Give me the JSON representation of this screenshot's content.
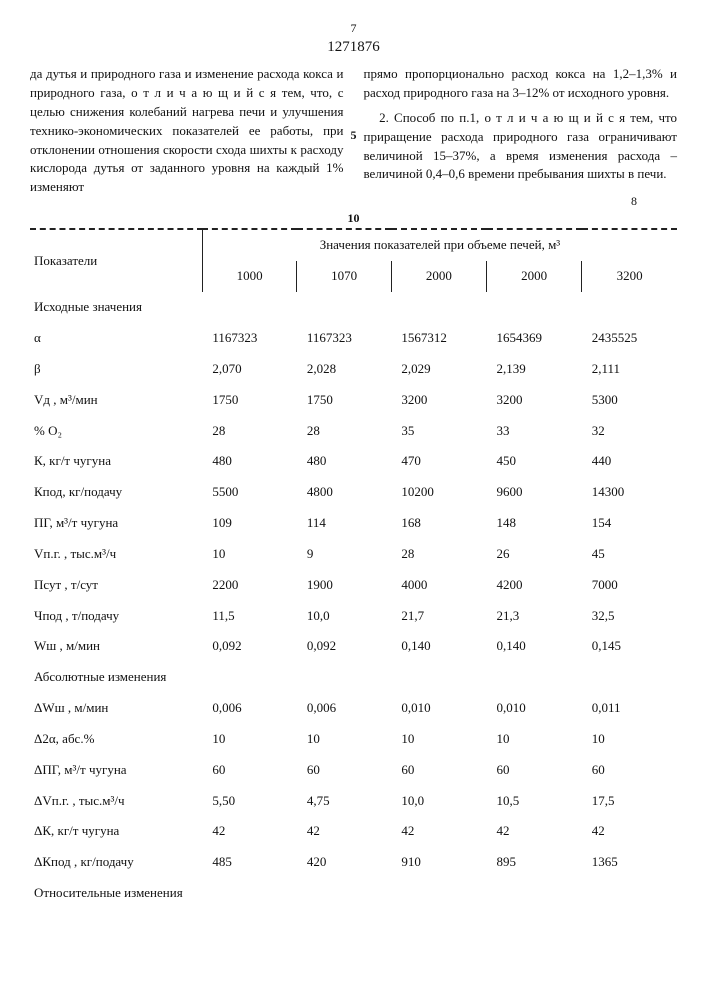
{
  "patentnum": "1271876",
  "page_left": "7",
  "page_right": "8",
  "col_left": "да дутья и природного газа и изменение расхода кокса и природного газа, о т л и ч а ю щ и й с я тем, что, с целью снижения колебаний нагрева печи и улучшения технико-экономических показателей ее работы, при отклонении отношения скорости схода шихты к расходу кислорода дутья от заданного уровня на каждый 1% изменяют",
  "col_right_p1": "прямо пропорционально расход кокса на 1,2–1,3% и расход природного газа на 3–12% от исходного уровня.",
  "col_right_p2": "2. Способ по п.1, о т л и ч а ю щ и й с я тем, что приращение расхода природного газа ограничивают величиной 15–37%, а время изменения расхода – величиной 0,4–0,6 времени пребывания шихты в печи.",
  "table": {
    "header_main": "Показатели",
    "header_group": "Значения показателей при объеме печей, м³",
    "volumes": [
      "1000",
      "1070",
      "2000",
      "2000",
      "3200"
    ],
    "section1_title": "Исходные значения",
    "section2_title": "Абсолютные изменения",
    "section3_title": "Относительные изменения",
    "rows1": [
      {
        "label": "α",
        "v": [
          "1167323",
          "1167323",
          "1567312",
          "1654369",
          "2435525"
        ]
      },
      {
        "label": "β",
        "v": [
          "2,070",
          "2,028",
          "2,029",
          "2,139",
          "2,111"
        ]
      },
      {
        "label": "Vд , м³/мин",
        "v": [
          "1750",
          "1750",
          "3200",
          "3200",
          "5300"
        ]
      },
      {
        "label": "% O₂",
        "v": [
          "28",
          "28",
          "35",
          "33",
          "32"
        ]
      },
      {
        "label": "К, кг/т чугуна",
        "v": [
          "480",
          "480",
          "470",
          "450",
          "440"
        ]
      },
      {
        "label": "Кпод, кг/подачу",
        "v": [
          "5500",
          "4800",
          "10200",
          "9600",
          "14300"
        ]
      },
      {
        "label": "ПГ, м³/т чугуна",
        "v": [
          "109",
          "114",
          "168",
          "148",
          "154"
        ]
      },
      {
        "label": "Vп.г. , тыс.м³/ч",
        "v": [
          "10",
          "9",
          "28",
          "26",
          "45"
        ]
      },
      {
        "label": "Псут , т/сут",
        "v": [
          "2200",
          "1900",
          "4000",
          "4200",
          "7000"
        ]
      },
      {
        "label": "Чпод , т/подачу",
        "v": [
          "11,5",
          "10,0",
          "21,7",
          "21,3",
          "32,5"
        ]
      },
      {
        "label": "Wш , м/мин",
        "v": [
          "0,092",
          "0,092",
          "0,140",
          "0,140",
          "0,145"
        ]
      }
    ],
    "rows2": [
      {
        "label": "ΔWш , м/мин",
        "v": [
          "0,006",
          "0,006",
          "0,010",
          "0,010",
          "0,011"
        ]
      },
      {
        "label": "Δ2α, абс.%",
        "v": [
          "10",
          "10",
          "10",
          "10",
          "10"
        ]
      },
      {
        "label": "ΔПГ, м³/т чугуна",
        "v": [
          "60",
          "60",
          "60",
          "60",
          "60"
        ]
      },
      {
        "label": "ΔVп.г. , тыс.м³/ч",
        "v": [
          "5,50",
          "4,75",
          "10,0",
          "10,5",
          "17,5"
        ]
      },
      {
        "label": "ΔК, кг/т чугуна",
        "v": [
          "42",
          "42",
          "42",
          "42",
          "42"
        ]
      },
      {
        "label": "ΔКпод , кг/подачу",
        "v": [
          "485",
          "420",
          "910",
          "895",
          "1365"
        ]
      }
    ]
  }
}
